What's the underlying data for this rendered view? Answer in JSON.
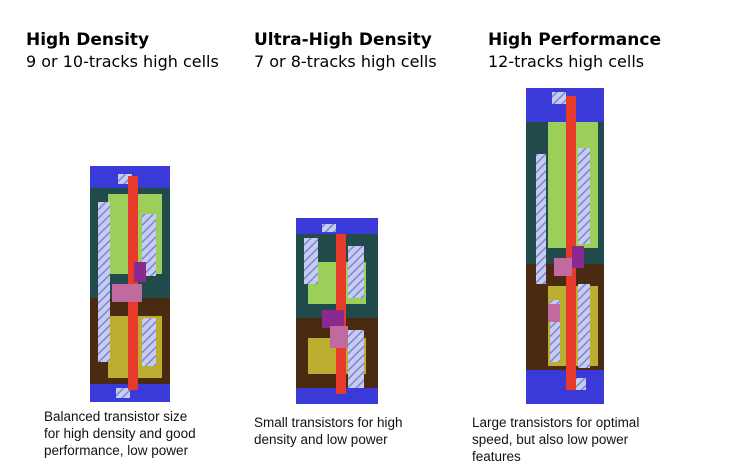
{
  "columns": [
    {
      "title": "High Density",
      "subtitle": "9 or 10-tracks high cells",
      "caption_lines": [
        "Balanced transistor size",
        "for high density and good",
        "performance, low power"
      ]
    },
    {
      "title": "Ultra-High Density",
      "subtitle": "7 or 8-tracks high cells",
      "caption_lines": [
        "Small transistors for high",
        "density and low power"
      ]
    },
    {
      "title": "High Performance",
      "subtitle": "12-tracks high cells",
      "caption_lines": [
        "Large transistors for optimal",
        "speed, but also low power",
        "features"
      ]
    }
  ],
  "colors": {
    "power_rail": "#3a3ad8",
    "nwell": "#214a4a",
    "pwell": "#4a2a10",
    "p_diffusion": "#9ccf5a",
    "n_diffusion": "#bcae2e",
    "poly_gate": "#e83a2a",
    "metal": "#c06aa0",
    "via_hatch": "#7a86d8"
  }
}
